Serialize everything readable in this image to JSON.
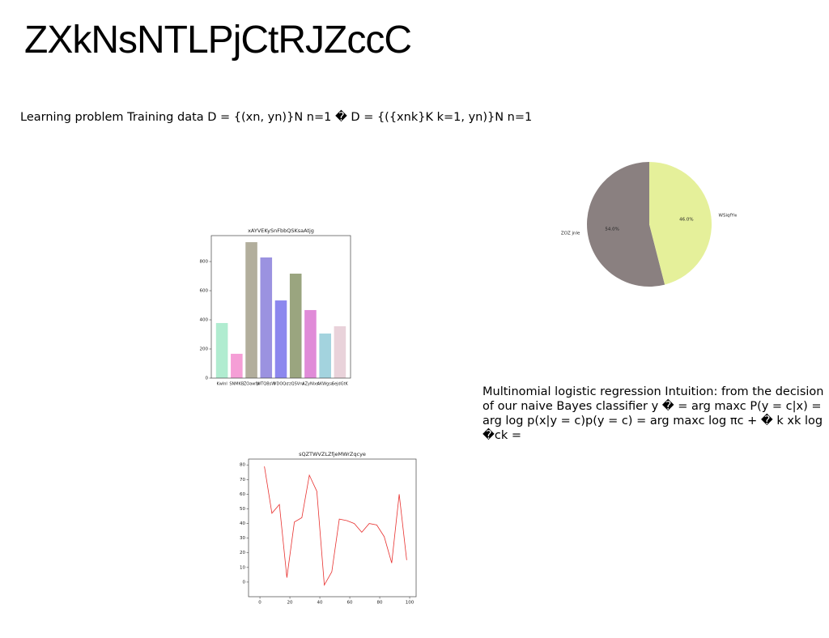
{
  "title": "ZXkNsNTLPjCtRJZccC",
  "paragraphs": [
    "Learning problem Training data D = {(xn, yn)}N n=1 � D = {({xnk}K k=1, yn)}N n=1",
    "Multinomial logistic regression Intuition: from the decision of our naive Bayes classifier y � = arg maxc P(y = c|x) = arg log p(x|y = c)p(y = c) = arg maxc log πc + � k xk log �ck ="
  ],
  "chart_data": [
    {
      "type": "bar",
      "title": "xAYVEKySnFbbQSKsaAtjg",
      "categories": [
        "Kwlnl",
        "SNMKB",
        "ZOawfp",
        "WTQBsW",
        "VDOQc",
        "rzQSVru",
        "AZyNlxs",
        "AKWgsx",
        "SejdGtK"
      ],
      "values": [
        378,
        167,
        933,
        828,
        533,
        717,
        467,
        306,
        356
      ],
      "colors": [
        "#b0ecd0",
        "#f59ed6",
        "#b2ae9c",
        "#9b92e0",
        "#8c87ee",
        "#9aa57f",
        "#e08bd8",
        "#a3d3de",
        "#e9d2da"
      ],
      "ylim": [
        0,
        978
      ],
      "yticks": [
        0,
        200,
        400,
        600,
        800
      ]
    },
    {
      "type": "pie",
      "labels": [
        "ZOZ jnle",
        "WSiqfYwP"
      ],
      "values": [
        54,
        46
      ],
      "value_labels": [
        "54.0%",
        "46.0%"
      ],
      "colors": [
        "#8a8080",
        "#e5f09a"
      ]
    },
    {
      "type": "line",
      "title": "sQZTWVZLZfjeMWrZqcye",
      "x": [
        3,
        8,
        13,
        18,
        23,
        28,
        33,
        38,
        43,
        48,
        53,
        58,
        63,
        68,
        73,
        78,
        83,
        88,
        93,
        98
      ],
      "series": [
        {
          "name": "series",
          "color": "#e8312f",
          "values": [
            79,
            47,
            53,
            3,
            41,
            44,
            73,
            62,
            -2,
            7,
            43,
            42,
            40,
            34,
            40,
            39,
            31,
            13,
            60,
            15
          ]
        }
      ],
      "xlim": [
        -7.6,
        104.3
      ],
      "ylim": [
        -10,
        84
      ],
      "xticks": [
        0,
        20,
        40,
        60,
        80,
        100
      ],
      "yticks": [
        0,
        10,
        20,
        30,
        40,
        50,
        60,
        70,
        80
      ]
    }
  ]
}
